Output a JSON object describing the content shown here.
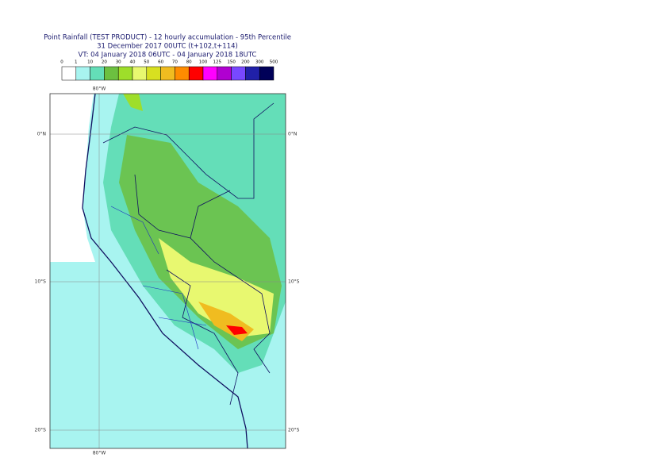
{
  "header": {
    "title": "Point Rainfall (TEST PRODUCT) - 12 hourly accumulation - 95th Percentile",
    "line2": "31 December 2017 00UTC (t+102,t+114)",
    "line3": "VT: 04 January 2018 06UTC - 04 January 2018 18UTC"
  },
  "legend": {
    "bounds": [
      0,
      1,
      10,
      20,
      30,
      40,
      50,
      60,
      70,
      80,
      100,
      125,
      150,
      200,
      300,
      500
    ],
    "colors": [
      "#ffffff",
      "#a8f4f0",
      "#64deb8",
      "#6cc040",
      "#9ede2a",
      "#e8f870",
      "#d8e020",
      "#f0bc20",
      "#ff8c00",
      "#ff0000",
      "#ff00ff",
      "#b000d0",
      "#7848ff",
      "#2020a8",
      "#000058"
    ]
  },
  "map": {
    "meridian_label": "80°W",
    "parallel_labels": [
      "0°N",
      "10°S",
      "20°S"
    ]
  }
}
